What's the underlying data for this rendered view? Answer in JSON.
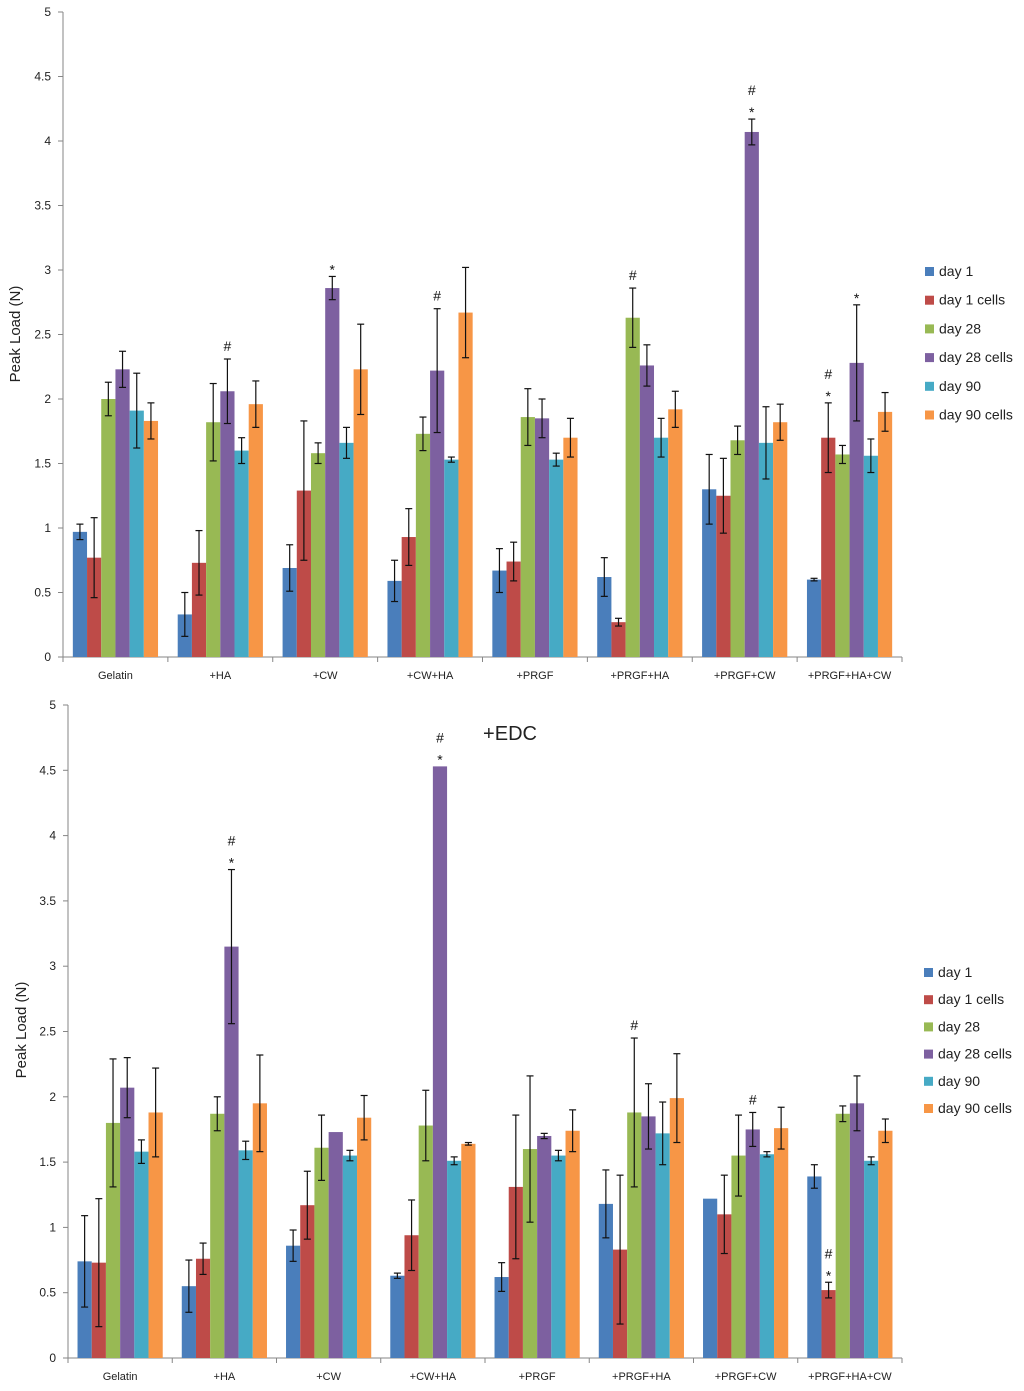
{
  "chart_data": [
    {
      "type": "bar",
      "title": "",
      "xlabel": "",
      "ylabel": "Peak Load (N)",
      "ylim": [
        0,
        5
      ],
      "yticks": [
        "0",
        "0.5",
        "1",
        "1.5",
        "2",
        "2.5",
        "3",
        "3.5",
        "4",
        "4.5",
        "5"
      ],
      "categories": [
        "Gelatin",
        "+HA",
        "+CW",
        "+CW+HA",
        "+PRGF",
        "+PRGF+HA",
        "+PRGF+CW",
        "+PRGF+HA+CW"
      ],
      "series": [
        {
          "name": "day 1",
          "color": "#4a7ebb",
          "values": [
            0.97,
            0.33,
            0.69,
            0.59,
            0.67,
            0.62,
            1.3,
            0.6
          ],
          "err": [
            0.06,
            0.17,
            0.18,
            0.16,
            0.17,
            0.15,
            0.27,
            0.01
          ]
        },
        {
          "name": "day 1 cells",
          "color": "#be4b48",
          "values": [
            0.77,
            0.73,
            1.29,
            0.93,
            0.74,
            0.27,
            1.25,
            1.7
          ],
          "err": [
            0.31,
            0.25,
            0.54,
            0.22,
            0.15,
            0.03,
            0.29,
            0.27
          ]
        },
        {
          "name": "day 28",
          "color": "#98b954",
          "values": [
            2.0,
            1.82,
            1.58,
            1.73,
            1.86,
            2.63,
            1.68,
            1.57
          ],
          "err": [
            0.13,
            0.3,
            0.08,
            0.13,
            0.22,
            0.23,
            0.11,
            0.07
          ]
        },
        {
          "name": "day 28 cells",
          "color": "#7d60a0",
          "values": [
            2.23,
            2.06,
            2.86,
            2.22,
            1.85,
            2.26,
            4.07,
            2.28
          ],
          "err": [
            0.14,
            0.25,
            0.09,
            0.48,
            0.15,
            0.16,
            0.1,
            0.45
          ]
        },
        {
          "name": "day 90",
          "color": "#46aac5",
          "values": [
            1.91,
            1.6,
            1.66,
            1.53,
            1.53,
            1.7,
            1.66,
            1.56
          ],
          "err": [
            0.29,
            0.1,
            0.12,
            0.02,
            0.05,
            0.15,
            0.28,
            0.13
          ]
        },
        {
          "name": "day 90 cells",
          "color": "#f79646",
          "values": [
            1.83,
            1.96,
            2.23,
            2.67,
            1.7,
            1.92,
            1.82,
            1.9
          ],
          "err": [
            0.14,
            0.18,
            0.35,
            0.35,
            0.15,
            0.14,
            0.14,
            0.15
          ]
        }
      ],
      "annotations": [
        {
          "category": "+HA",
          "series": "day 28 cells",
          "marks": [
            "#"
          ]
        },
        {
          "category": "+CW",
          "series": "day 28 cells",
          "marks": [
            "*"
          ]
        },
        {
          "category": "+CW+HA",
          "series": "day 28 cells",
          "marks": [
            "#"
          ]
        },
        {
          "category": "+PRGF+HA",
          "series": "day 28",
          "marks": [
            "#"
          ]
        },
        {
          "category": "+PRGF+CW",
          "series": "day 28 cells",
          "marks": [
            "#",
            "*"
          ]
        },
        {
          "category": "+PRGF+HA+CW",
          "series": "day 1 cells",
          "marks": [
            "#",
            "*"
          ]
        },
        {
          "category": "+PRGF+HA+CW",
          "series": "day 28 cells",
          "marks": [
            "*"
          ]
        }
      ]
    },
    {
      "type": "bar",
      "title": "+EDC",
      "xlabel": "",
      "ylabel": "Peak Load (N)",
      "ylim": [
        0,
        5
      ],
      "yticks": [
        "0",
        "0.5",
        "1",
        "1.5",
        "2",
        "2.5",
        "3",
        "3.5",
        "4",
        "4.5",
        "5"
      ],
      "categories": [
        "Gelatin",
        "+HA",
        "+CW",
        "+CW+HA",
        "+PRGF",
        "+PRGF+HA",
        "+PRGF+CW",
        "+PRGF+HA+CW"
      ],
      "series": [
        {
          "name": "day 1",
          "color": "#4a7ebb",
          "values": [
            0.74,
            0.55,
            0.86,
            0.63,
            0.62,
            1.18,
            1.22,
            1.39
          ],
          "err": [
            0.35,
            0.2,
            0.12,
            0.02,
            0.11,
            0.26,
            0.0,
            0.09
          ]
        },
        {
          "name": "day 1 cells",
          "color": "#be4b48",
          "values": [
            0.73,
            0.76,
            1.17,
            0.94,
            1.31,
            0.83,
            1.1,
            0.52
          ],
          "err": [
            0.49,
            0.12,
            0.26,
            0.27,
            0.55,
            0.57,
            0.3,
            0.06
          ]
        },
        {
          "name": "day 28",
          "color": "#98b954",
          "values": [
            1.8,
            1.87,
            1.61,
            1.78,
            1.6,
            1.88,
            1.55,
            1.87
          ],
          "err": [
            0.49,
            0.13,
            0.25,
            0.27,
            0.56,
            0.57,
            0.31,
            0.06
          ]
        },
        {
          "name": "day 28 cells",
          "color": "#7d60a0",
          "values": [
            2.07,
            3.15,
            1.73,
            4.53,
            1.7,
            1.85,
            1.75,
            1.95
          ],
          "err": [
            0.23,
            0.59,
            0.0,
            0.0,
            0.02,
            0.25,
            0.13,
            0.21
          ]
        },
        {
          "name": "day 90",
          "color": "#46aac5",
          "values": [
            1.58,
            1.59,
            1.55,
            1.51,
            1.55,
            1.72,
            1.56,
            1.51
          ],
          "err": [
            0.09,
            0.07,
            0.04,
            0.03,
            0.04,
            0.24,
            0.02,
            0.03
          ]
        },
        {
          "name": "day 90 cells",
          "color": "#f79646",
          "values": [
            1.88,
            1.95,
            1.84,
            1.64,
            1.74,
            1.99,
            1.76,
            1.74
          ],
          "err": [
            0.34,
            0.37,
            0.17,
            0.01,
            0.16,
            0.34,
            0.16,
            0.09
          ]
        }
      ],
      "annotations": [
        {
          "category": "+HA",
          "series": "day 28 cells",
          "marks": [
            "#",
            "*"
          ]
        },
        {
          "category": "+CW+HA",
          "series": "day 28 cells",
          "marks": [
            "#",
            "*"
          ]
        },
        {
          "category": "+PRGF+HA",
          "series": "day 28",
          "marks": [
            "#"
          ]
        },
        {
          "category": "+PRGF+CW",
          "series": "day 28 cells",
          "marks": [
            "#"
          ]
        },
        {
          "category": "+PRGF+HA+CW",
          "series": "day 1 cells",
          "marks": [
            "#",
            "*"
          ]
        }
      ]
    }
  ]
}
